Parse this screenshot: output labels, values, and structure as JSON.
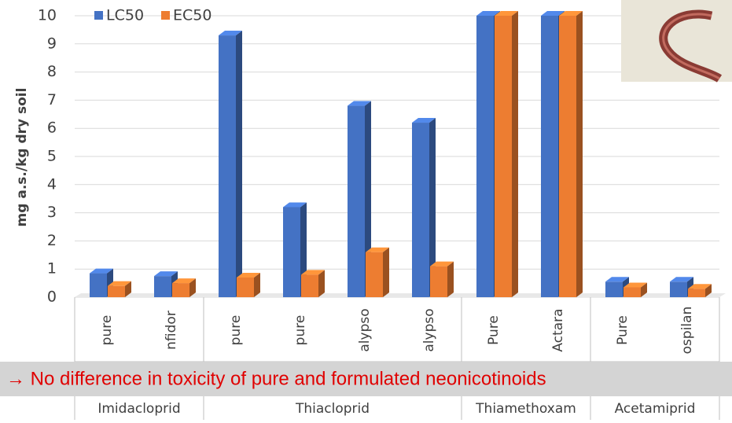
{
  "chart_data": {
    "type": "bar",
    "y_label": "mg a.s./kg dry soil",
    "categories": [
      "pure",
      "nfidor",
      "pure",
      "pure",
      "alypso",
      "alypso",
      "Pure",
      "Actara",
      "Pure",
      "ospilan"
    ],
    "groups": [
      "Imidacloprid",
      "Thiacloprid",
      "Thiamethoxam",
      "Acetamiprid"
    ],
    "series": [
      {
        "name": "LC50",
        "color": "#4472c4",
        "values": [
          0.85,
          0.75,
          9.3,
          3.2,
          6.8,
          6.2,
          10,
          10,
          0.55,
          0.55
        ]
      },
      {
        "name": "EC50",
        "color": "#ed7d31",
        "values": [
          0.4,
          0.5,
          0.7,
          0.8,
          1.6,
          1.1,
          10,
          10,
          0.35,
          0.3
        ]
      }
    ],
    "ylim": [
      0,
      10
    ],
    "yticks": [
      0,
      1,
      2,
      3,
      4,
      5,
      6,
      7,
      8,
      9,
      10
    ],
    "grid": true,
    "legend": "top-left",
    "annotation": "→ No difference in toxicity of pure and formulated neonicotinoids"
  }
}
